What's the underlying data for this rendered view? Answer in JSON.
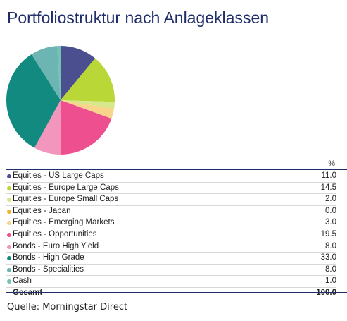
{
  "title": "Portfoliostruktur nach Anlageklassen",
  "percent_header": "%",
  "source": "Quelle: Morningstar Direct",
  "chart_data": {
    "type": "pie",
    "title": "Portfoliostruktur nach Anlageklassen",
    "slices": [
      {
        "label": "Equities - US Large Caps",
        "value": 11.0,
        "display": "11.0",
        "color": "#4b4f8f"
      },
      {
        "label": "Equities - Europe Large Caps",
        "value": 14.5,
        "display": "14.5",
        "color": "#b9d737"
      },
      {
        "label": "Equities - Europe Small Caps",
        "value": 2.0,
        "display": "2.0",
        "color": "#d7e88a"
      },
      {
        "label": "Equities - Japan",
        "value": 0.0,
        "display": "0.0",
        "color": "#f2b233"
      },
      {
        "label": "Equities - Emerging Markets",
        "value": 3.0,
        "display": "3.0",
        "color": "#f7d58a"
      },
      {
        "label": "Equities - Opportunities",
        "value": 19.5,
        "display": "19.5",
        "color": "#ee4f8e"
      },
      {
        "label": "Bonds - Euro High Yield",
        "value": 8.0,
        "display": "8.0",
        "color": "#f396bd"
      },
      {
        "label": "Bonds - High Grade",
        "value": 33.0,
        "display": "33.0",
        "color": "#138a80"
      },
      {
        "label": "Bonds - Specialities",
        "value": 8.0,
        "display": "8.0",
        "color": "#6db5b3"
      },
      {
        "label": "Cash",
        "value": 1.0,
        "display": "1.0",
        "color": "#73c3b2"
      }
    ],
    "total_label": "Gesamt",
    "total_value": "100.0"
  }
}
